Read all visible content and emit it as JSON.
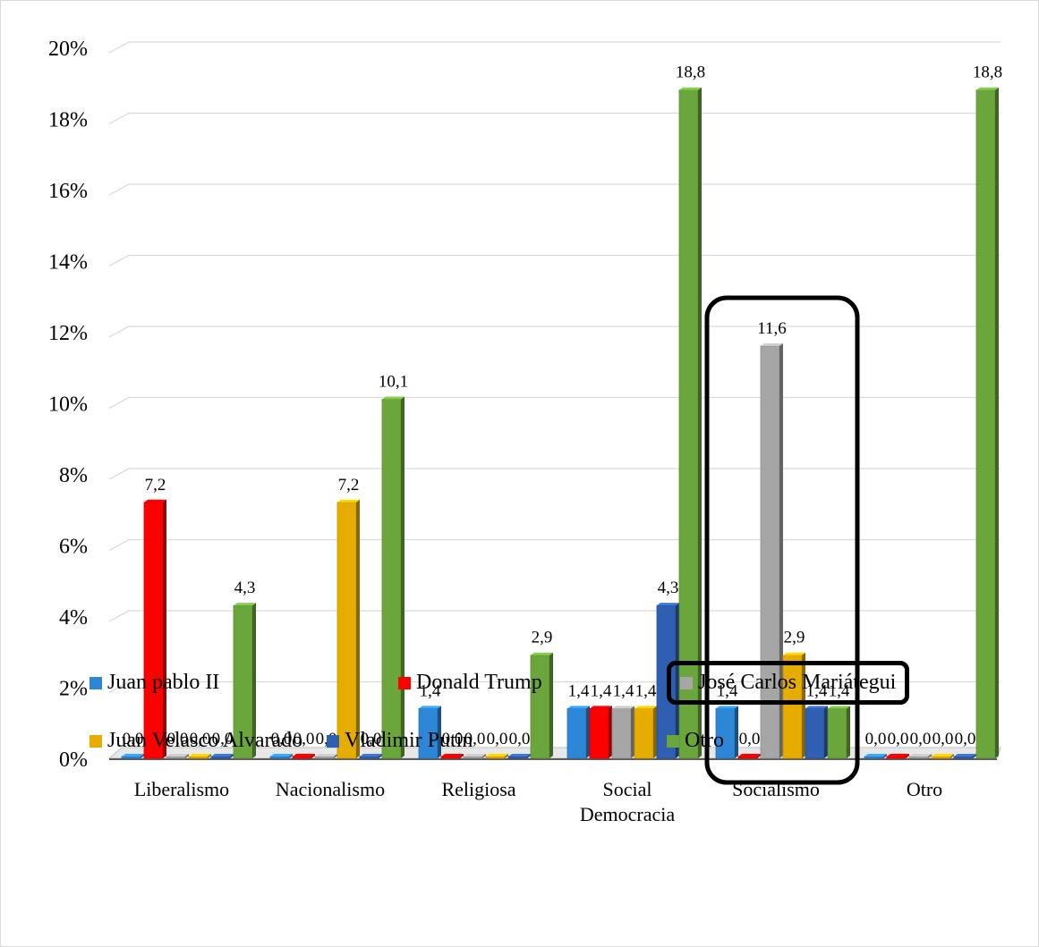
{
  "chart_data": {
    "type": "bar",
    "title": "",
    "xlabel": "",
    "ylabel": "",
    "ylim": [
      0,
      20
    ],
    "yticks": [
      "0%",
      "2%",
      "4%",
      "6%",
      "8%",
      "10%",
      "12%",
      "14%",
      "16%",
      "18%",
      "20%"
    ],
    "grid": true,
    "legend_position": "bottom",
    "categories": [
      "Liberalismo",
      "Nacionalismo",
      "Religiosa",
      "Social Democracia",
      "Socialismo",
      "Otro"
    ],
    "category_labels": [
      [
        "Liberalismo"
      ],
      [
        "Nacionalismo"
      ],
      [
        "Religiosa"
      ],
      [
        "Social",
        "Democracia"
      ],
      [
        "Socialismo"
      ],
      [
        "Otro"
      ]
    ],
    "series": [
      {
        "name": "Juan pablo II",
        "color": "#2e86d6",
        "values": [
          0.0,
          0.0,
          1.4,
          1.4,
          1.4,
          0.0
        ],
        "labels": [
          "0,0",
          "0,0",
          "1,4",
          "1,4",
          "1,4",
          "0,0"
        ]
      },
      {
        "name": "Donald Trump",
        "color": "#ff0000",
        "values": [
          7.2,
          0.0,
          0.0,
          1.4,
          0.0,
          0.0
        ],
        "labels": [
          "7,2",
          "0,0",
          "0,0",
          "1,4",
          "0,0",
          "0,0"
        ]
      },
      {
        "name": "José Carlos Mariátegui",
        "color": "#a6a6a6",
        "values": [
          0.0,
          0.0,
          0.0,
          1.4,
          11.6,
          0.0
        ],
        "labels": [
          "0,0",
          "0,0",
          "0,0",
          "1,4",
          "11,6",
          "0,0"
        ]
      },
      {
        "name": "Juan Velasco Alvarado",
        "color": "#e6ad00",
        "values": [
          0.0,
          7.2,
          0.0,
          1.4,
          2.9,
          0.0
        ],
        "labels": [
          "0,0",
          "7,2",
          "0,0",
          "1,4",
          "2,9",
          "0,0"
        ]
      },
      {
        "name": "Vladimir Putin",
        "color": "#2f5fb0",
        "values": [
          0.0,
          0.0,
          0.0,
          4.3,
          1.4,
          0.0
        ],
        "labels": [
          "0,0",
          "0,0",
          "0,0",
          "4,3",
          "1,4",
          "0,0"
        ]
      },
      {
        "name": "Otro",
        "color": "#6aa63c",
        "values": [
          4.3,
          10.1,
          2.9,
          18.8,
          1.4,
          18.8
        ],
        "labels": [
          "4,3",
          "10,1",
          "2,9",
          "18,8",
          "1,4",
          "18,8"
        ]
      }
    ],
    "highlighted_category": "Socialismo",
    "highlighted_series": "José Carlos Mariátegui"
  }
}
